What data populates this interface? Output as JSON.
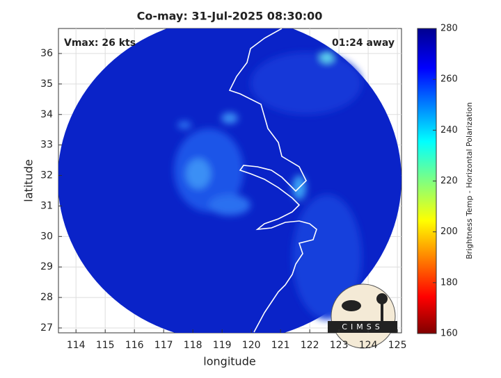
{
  "chart_data": {
    "type": "map",
    "title": "Co-may: 31-Jul-2025 08:30:00",
    "xlabel": "longitude",
    "ylabel": "latitude",
    "annotations": [
      "Vmax: 26 kts",
      "01:24 away"
    ],
    "xlim": [
      113.4,
      125.14
    ],
    "ylim": [
      26.84,
      36.82
    ],
    "xticks": [
      114,
      115,
      116,
      117,
      118,
      119,
      120,
      121,
      122,
      123,
      124,
      125
    ],
    "yticks": [
      27,
      28,
      29,
      30,
      31,
      32,
      33,
      34,
      35,
      36
    ],
    "grid": true,
    "colorbar": {
      "label": "Brightness Temp - Horizontal Polarization",
      "lim": [
        160,
        280
      ],
      "ticks": [
        160,
        180,
        200,
        220,
        240,
        260,
        280
      ]
    },
    "logo": "CIMSS"
  }
}
